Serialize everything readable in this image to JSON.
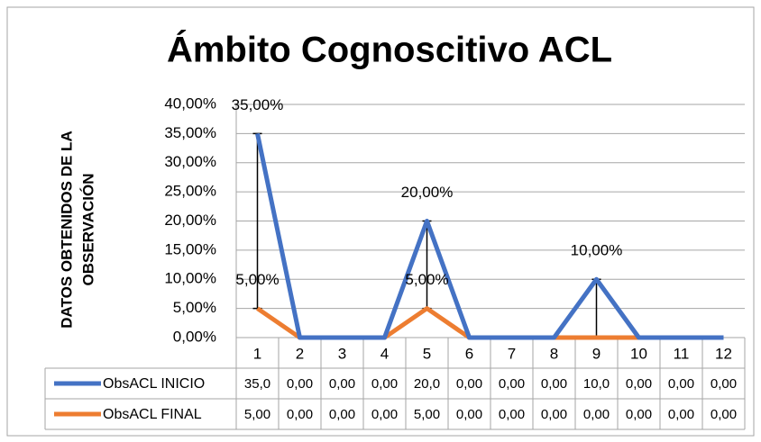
{
  "chart_data": {
    "type": "line",
    "title": "Ámbito Cognoscitivo ACL",
    "ylabel": [
      "DATOS OBTENIDOS DE LA",
      "OBSERVACIÓN"
    ],
    "categories": [
      "1",
      "2",
      "3",
      "4",
      "5",
      "6",
      "7",
      "8",
      "9",
      "10",
      "11",
      "12"
    ],
    "series": [
      {
        "name": "ObsACL INICIO",
        "color": "#4472c4",
        "values": [
          35,
          0,
          0,
          0,
          20,
          0,
          0,
          0,
          10,
          0,
          0,
          0
        ],
        "value_labels": [
          "35,0",
          "0,00",
          "0,00",
          "0,00",
          "20,0",
          "0,00",
          "0,00",
          "0,00",
          "10,0",
          "0,00",
          "0,00",
          "0,00"
        ],
        "data_labels": [
          "35,00%",
          null,
          null,
          null,
          "20,00%",
          null,
          null,
          null,
          "10,00%",
          null,
          null,
          null
        ]
      },
      {
        "name": "ObsACL FINAL",
        "color": "#ed7d31",
        "values": [
          5,
          0,
          0,
          0,
          5,
          0,
          0,
          0,
          0,
          0,
          0,
          0
        ],
        "value_labels": [
          "5,00",
          "0,00",
          "0,00",
          "0,00",
          "5,00",
          "0,00",
          "0,00",
          "0,00",
          "0,00",
          "0,00",
          "0,00",
          "0,00"
        ],
        "data_labels": [
          "5,00%",
          null,
          null,
          null,
          "5,00%",
          null,
          null,
          null,
          null,
          null,
          null,
          null
        ]
      }
    ],
    "ylim": [
      0,
      40
    ],
    "yticks": [
      {
        "value": 0,
        "label": "0,00%"
      },
      {
        "value": 5,
        "label": "5,00%"
      },
      {
        "value": 10,
        "label": "10,00%"
      },
      {
        "value": 15,
        "label": "15,00%"
      },
      {
        "value": 20,
        "label": "20,00%"
      },
      {
        "value": 25,
        "label": "25,00%"
      },
      {
        "value": 30,
        "label": "30,00%"
      },
      {
        "value": 35,
        "label": "35,00%"
      },
      {
        "value": 40,
        "label": "40,00%"
      }
    ],
    "grid": true,
    "data_table": true
  }
}
